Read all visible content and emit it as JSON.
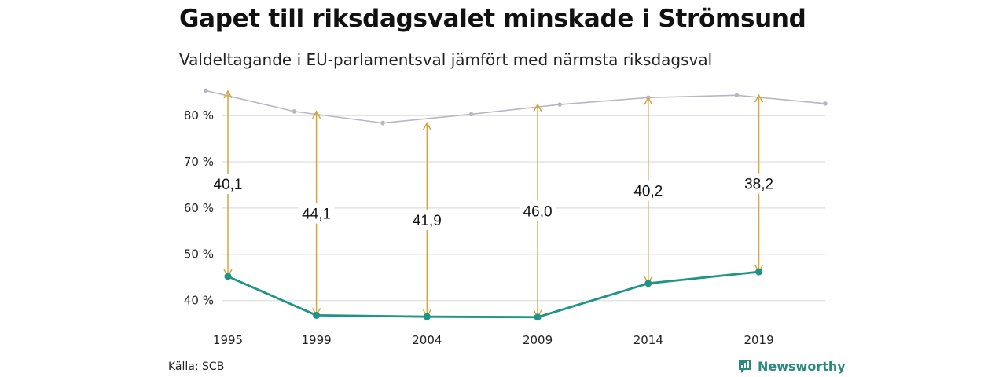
{
  "header": {
    "title": "Gapet till riksdagsvalet minskade i Strömsund",
    "subtitle": "Valdeltagande i EU-parlamentsval jämfört med närmsta riksdagsval"
  },
  "footer": {
    "source": "Källa: SCB",
    "brand": "Newsworthy",
    "brand_icon": "bar-chart-logo-icon"
  },
  "colors": {
    "riksdag": "#b9b6c1",
    "eu": "#1d9485",
    "gap_arrow": "#d4a640",
    "grid": "#e3e3e3"
  },
  "chart_data": {
    "type": "line",
    "title": "Gapet till riksdagsvalet minskade i Strömsund",
    "subtitle": "Valdeltagande i EU-parlamentsval jämfört med närmsta riksdagsval",
    "xlabel": "",
    "ylabel": "",
    "xlim": [
      1995,
      2022
    ],
    "ylim": [
      35,
      87
    ],
    "x_ticks": [
      1995,
      1999,
      2004,
      2009,
      2014,
      2019
    ],
    "x_tick_labels": [
      "1995",
      "1999",
      "2004",
      "2009",
      "2014",
      "2019"
    ],
    "y_ticks": [
      40,
      50,
      60,
      70,
      80
    ],
    "y_tick_labels": [
      "40 %",
      "50 %",
      "60 %",
      "70 %",
      "80 %"
    ],
    "grid": true,
    "legend": "none",
    "series": [
      {
        "x": [
          1994,
          1998,
          2002,
          2006,
          2010,
          2014,
          2018,
          2022
        ],
        "values": [
          85.4,
          80.9,
          78.4,
          80.3,
          82.4,
          83.9,
          84.4,
          82.6
        ]
      },
      {
        "x": [
          1995,
          1999,
          2004,
          2009,
          2014,
          2019
        ],
        "values": [
          45.2,
          36.8,
          36.5,
          36.4,
          43.7,
          46.2
        ]
      }
    ],
    "gaps": [
      {
        "x": 1995,
        "top": 85.3,
        "bottom": 45.2,
        "label": "40,1"
      },
      {
        "x": 1999,
        "top": 80.9,
        "bottom": 36.8,
        "label": "44,1"
      },
      {
        "x": 2004,
        "top": 78.4,
        "bottom": 36.5,
        "label": "41,9"
      },
      {
        "x": 2009,
        "top": 82.4,
        "bottom": 36.4,
        "label": "46,0"
      },
      {
        "x": 2014,
        "top": 83.9,
        "bottom": 43.7,
        "label": "40,2"
      },
      {
        "x": 2019,
        "top": 84.4,
        "bottom": 46.2,
        "label": "38,2"
      }
    ]
  }
}
